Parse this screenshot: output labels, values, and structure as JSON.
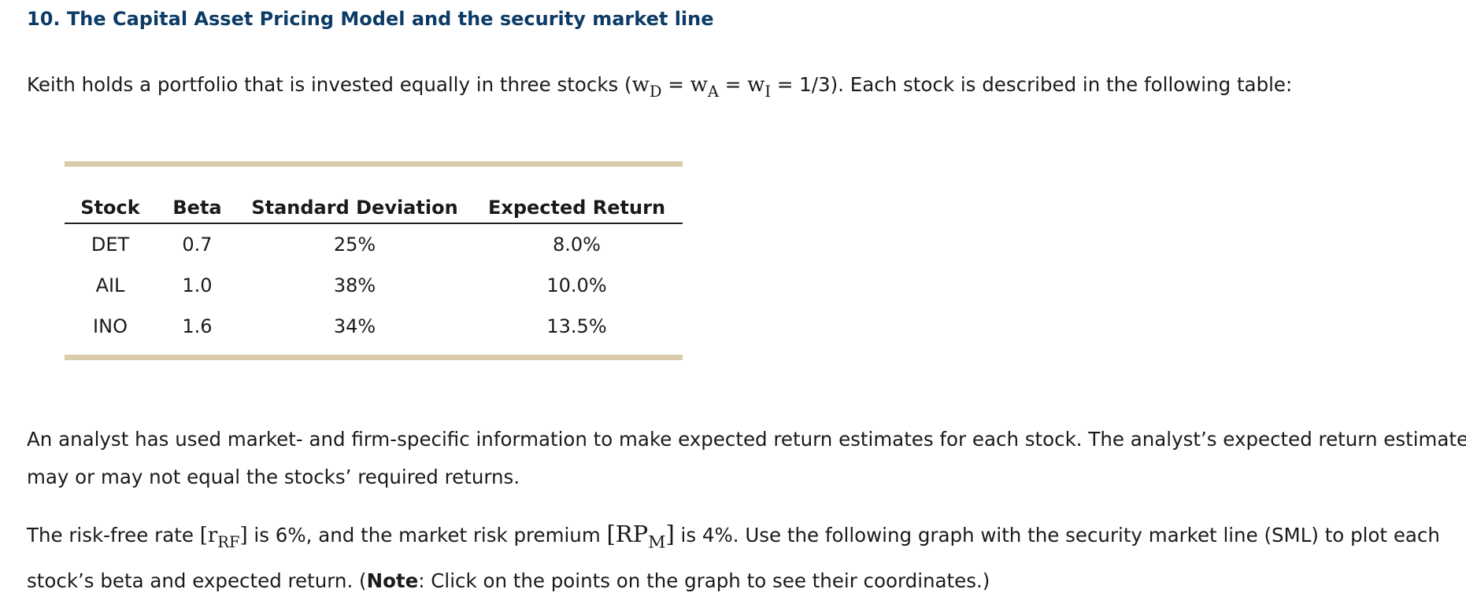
{
  "heading": "10. The Capital Asset Pricing Model and the security market line",
  "intro": {
    "lead": "Keith holds a portfolio that is invested equally in three stocks (",
    "w": "w",
    "sub_d": "D",
    "sub_a": "A",
    "sub_i": "I",
    "eq": " = ",
    "weight_value": "1/3",
    "tail": "). Each stock is described in the following table:"
  },
  "table": {
    "headers": [
      "Stock",
      "Beta",
      "Standard Deviation",
      "Expected Return"
    ],
    "rows": [
      [
        "DET",
        "0.7",
        "25%",
        "8.0%"
      ],
      [
        "AIL",
        "1.0",
        "38%",
        "10.0%"
      ],
      [
        "INO",
        "1.6",
        "34%",
        "13.5%"
      ]
    ]
  },
  "analyst_paragraph": {
    "line1": "An analyst has used market- and firm-specific information to make expected return estimates for each stock. The analyst’s expected return estimates",
    "line2": "may or may not equal the stocks’ required returns."
  },
  "instructions": {
    "t1": "The risk-free rate ",
    "rf_open": "[r",
    "rf_sub": "RF",
    "rf_close": "]",
    "t2": " is 6%, and the market risk premium ",
    "rp_open": "[RP",
    "rp_sub": "M",
    "rp_close": "]",
    "t3": " is 4%. Use the following graph with the security market line (SML) to plot each",
    "line2_lead": "stock’s beta and expected return. (",
    "note_label": "Note",
    "line2_tail": ": Click on the points on the graph to see their coordinates.)"
  }
}
